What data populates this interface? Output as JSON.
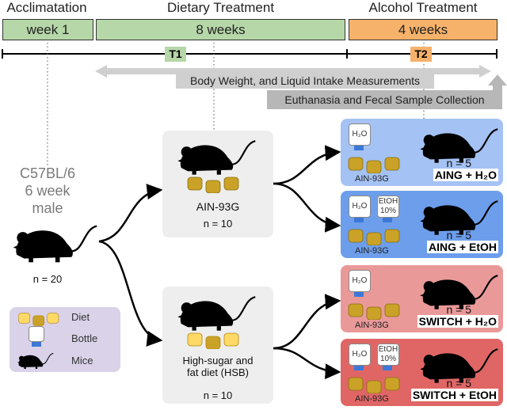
{
  "phases": [
    {
      "header": "Acclimatation",
      "duration": "week 1",
      "color": "#b6d7a8"
    },
    {
      "header": "Dietary Treatment",
      "duration": "8 weeks",
      "color": "#b6d7a8"
    },
    {
      "header": "Alcohol Treatment",
      "duration": "4 weeks",
      "color": "#f6b26b"
    }
  ],
  "timepoints": [
    "T1",
    "T2"
  ],
  "measurements": "Body Weight, and Liquid Intake Measurements",
  "collection": "Euthanasia and Fecal Sample Collection",
  "start": {
    "strain": "C57BL/6",
    "age": "6 week",
    "sex": "male",
    "n": "n = 20"
  },
  "legend": {
    "diet": "Diet",
    "bottle": "Bottle",
    "mice": "Mice"
  },
  "diets": [
    {
      "name": "AIN-93G",
      "n": "n = 10"
    },
    {
      "name": "High-sugar and fat diet (HSB)",
      "n": "n = 10"
    }
  ],
  "groups": [
    {
      "label": "AING + H₂O",
      "n": "n = 5",
      "diet": "AIN-93G",
      "bottles": [
        "H₂O"
      ],
      "color": "#a4c2f4"
    },
    {
      "label": "AING + EtOH",
      "n": "n = 5",
      "diet": "AIN-93G",
      "bottles": [
        "H₂O",
        "EtOH 10%"
      ],
      "color": "#6d9eeb"
    },
    {
      "label": "SWITCH + H₂O",
      "n": "n = 5",
      "diet": "AIN-93G",
      "bottles": [
        "H₂O"
      ],
      "color": "#ea9999"
    },
    {
      "label": "SWITCH + EtOH",
      "n": "n = 5",
      "diet": "AIN-93G",
      "bottles": [
        "H₂O",
        "EtOH 10%"
      ],
      "color": "#e06666"
    }
  ]
}
